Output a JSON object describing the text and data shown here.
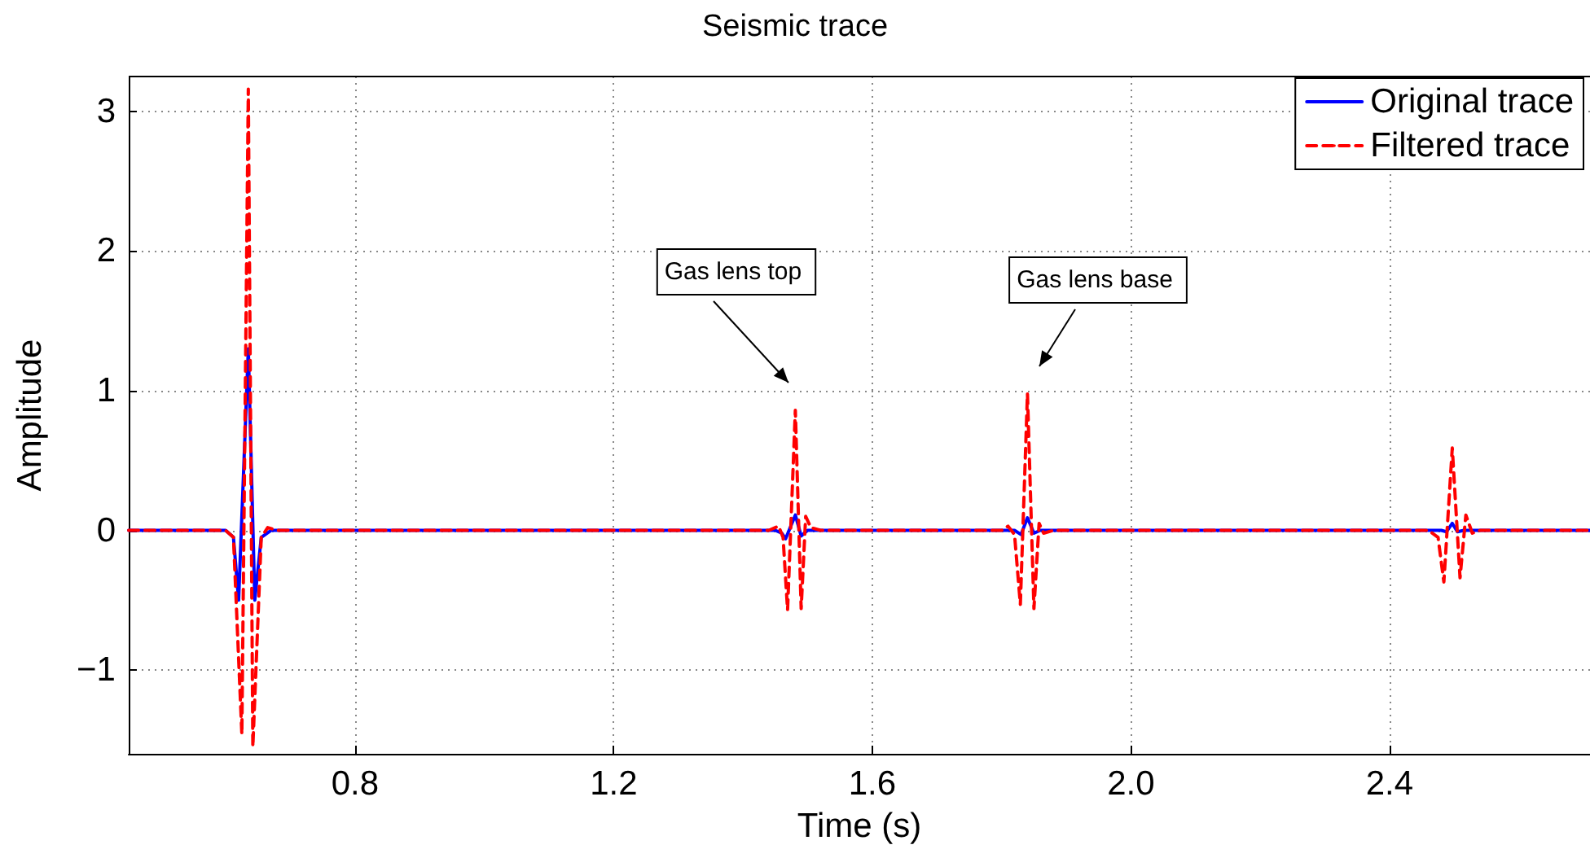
{
  "chart_data": {
    "type": "line",
    "title": "Seismic trace",
    "xlabel": "Time (s)",
    "ylabel": "Amplitude",
    "xlim": [
      0.45,
      2.71
    ],
    "xticks": [
      {
        "value": 0.8,
        "label": "0.8"
      },
      {
        "value": 1.2,
        "label": "1.2"
      },
      {
        "value": 1.6,
        "label": "1.6"
      },
      {
        "value": 2.0,
        "label": "2.0"
      },
      {
        "value": 2.4,
        "label": "2.4"
      }
    ],
    "ylim": [
      -1.6,
      3.25
    ],
    "yticks": [
      -1,
      0,
      1,
      2,
      3
    ],
    "grid": true,
    "legend": "top right",
    "marker": "none",
    "annotations": [
      "Gas lens top",
      "Gas lens base"
    ],
    "series": [
      {
        "name": "Original trace",
        "color": "#0000ff",
        "line_style": "solid",
        "x": [
          0.45,
          0.6,
          0.612,
          0.62,
          0.635,
          0.645,
          0.655,
          0.67,
          1.45,
          1.46,
          1.466,
          1.481,
          1.49,
          1.5,
          1.82,
          1.83,
          1.84,
          1.85,
          1.86,
          2.48,
          2.488,
          2.497,
          2.505,
          2.515,
          2.71
        ],
        "values": [
          0,
          0,
          -0.05,
          -0.5,
          1.3,
          -0.5,
          -0.05,
          0,
          0,
          -0.02,
          -0.06,
          0.11,
          -0.04,
          0,
          0,
          -0.03,
          0.09,
          -0.02,
          0,
          0,
          -0.01,
          0.05,
          -0.01,
          0,
          0
        ]
      },
      {
        "name": "Filtered trace",
        "color": "#ff0000",
        "line_style": "dashed",
        "x": [
          0.45,
          0.6,
          0.612,
          0.625,
          0.635,
          0.642,
          0.655,
          0.665,
          0.68,
          1.44,
          1.455,
          1.462,
          1.469,
          1.481,
          1.49,
          1.497,
          1.505,
          1.52,
          1.8,
          1.81,
          1.82,
          1.829,
          1.84,
          1.85,
          1.858,
          1.865,
          1.88,
          2.46,
          2.475,
          2.484,
          2.497,
          2.509,
          2.518,
          2.528,
          2.54,
          2.71
        ],
        "values": [
          0,
          0,
          -0.05,
          -1.46,
          3.16,
          -1.55,
          -0.05,
          0.02,
          0,
          0,
          0.03,
          -0.05,
          -0.57,
          0.86,
          -0.56,
          0.1,
          0.02,
          0,
          0,
          0.03,
          -0.03,
          -0.53,
          0.98,
          -0.56,
          0.05,
          -0.02,
          0,
          0,
          -0.05,
          -0.37,
          0.59,
          -0.34,
          0.11,
          -0.02,
          0,
          0
        ]
      }
    ]
  }
}
